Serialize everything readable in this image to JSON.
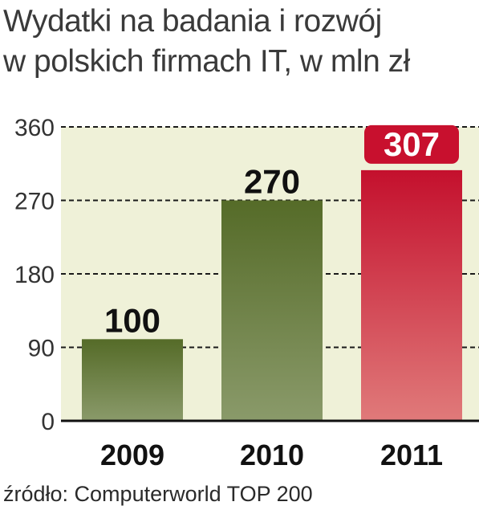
{
  "title_line1": "Wydatki na badania i rozwój",
  "title_line2": "w polskich firmach IT, w mln zł",
  "source": "źródło: Computerworld TOP 200",
  "colors": {
    "bg_band": "#eff1d8",
    "olive_top": "#556b28",
    "olive_bottom": "#8a9a6a",
    "red_top": "#c4102d",
    "red_bottom": "#e07a7a",
    "badge": "#c8102e"
  },
  "chart_data": {
    "type": "bar",
    "categories": [
      "2009",
      "2010",
      "2011"
    ],
    "values": [
      100,
      270,
      307
    ],
    "data_labels": [
      "100",
      "270",
      "307"
    ],
    "highlight_index": 2,
    "yticks": [
      0,
      90,
      180,
      270,
      360
    ],
    "ylim": [
      0,
      360
    ],
    "grid": true,
    "title": "Wydatki na badania i rozwój w polskich firmach IT, w mln zł",
    "xlabel": "",
    "ylabel": ""
  }
}
